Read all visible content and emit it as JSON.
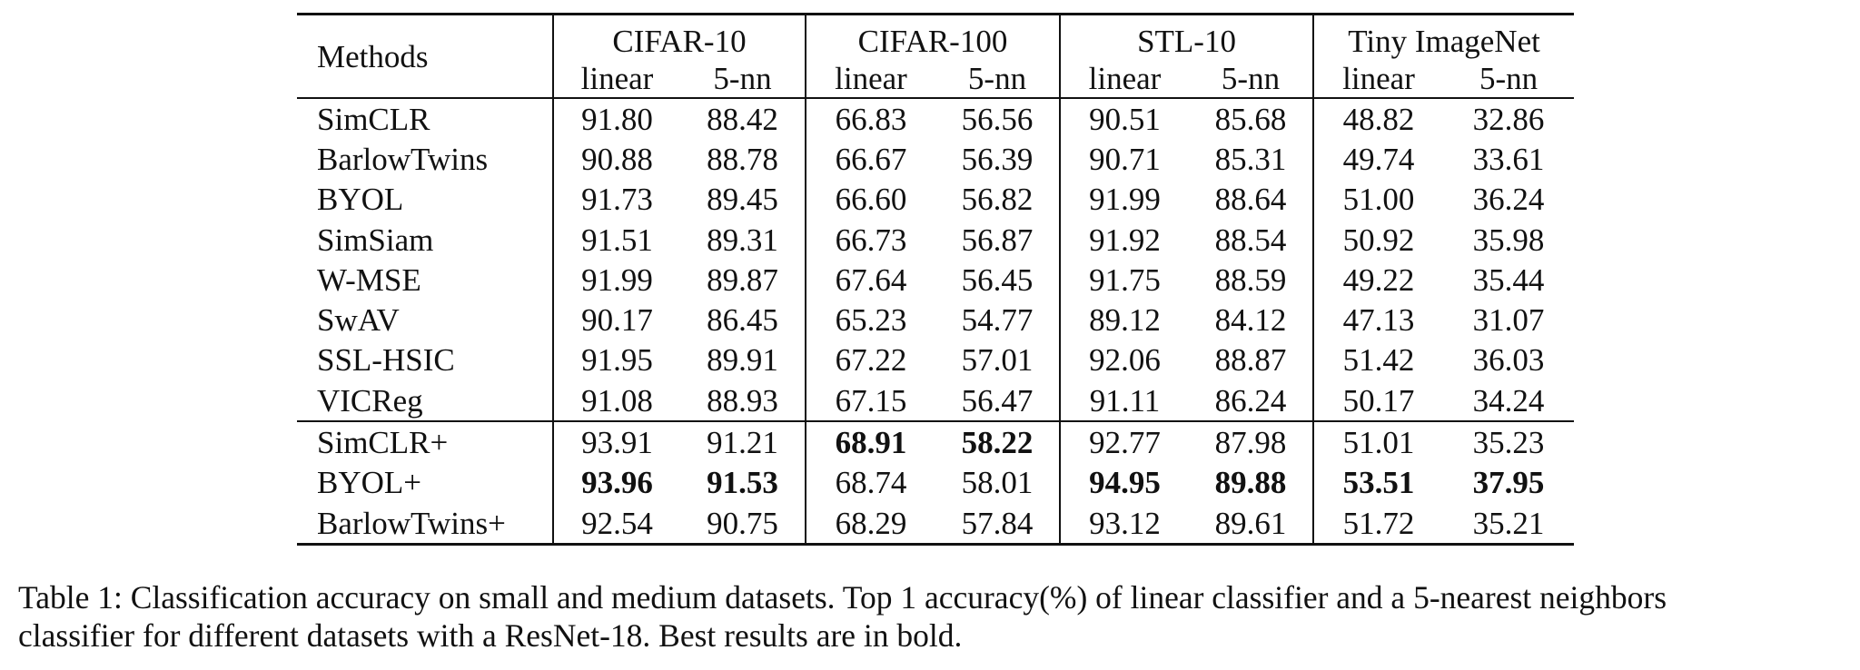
{
  "table": {
    "methods_header": "Methods",
    "datasets": [
      "CIFAR-10",
      "CIFAR-100",
      "STL-10",
      "Tiny ImageNet"
    ],
    "sub_headers": [
      "linear",
      "5-nn"
    ],
    "baseline_rows": [
      {
        "method": "SimCLR",
        "values": [
          "91.80",
          "88.42",
          "66.83",
          "56.56",
          "90.51",
          "85.68",
          "48.82",
          "32.86"
        ],
        "bold": [
          false,
          false,
          false,
          false,
          false,
          false,
          false,
          false
        ]
      },
      {
        "method": "BarlowTwins",
        "values": [
          "90.88",
          "88.78",
          "66.67",
          "56.39",
          "90.71",
          "85.31",
          "49.74",
          "33.61"
        ],
        "bold": [
          false,
          false,
          false,
          false,
          false,
          false,
          false,
          false
        ]
      },
      {
        "method": "BYOL",
        "values": [
          "91.73",
          "89.45",
          "66.60",
          "56.82",
          "91.99",
          "88.64",
          "51.00",
          "36.24"
        ],
        "bold": [
          false,
          false,
          false,
          false,
          false,
          false,
          false,
          false
        ]
      },
      {
        "method": "SimSiam",
        "values": [
          "91.51",
          "89.31",
          "66.73",
          "56.87",
          "91.92",
          "88.54",
          "50.92",
          "35.98"
        ],
        "bold": [
          false,
          false,
          false,
          false,
          false,
          false,
          false,
          false
        ]
      },
      {
        "method": "W-MSE",
        "values": [
          "91.99",
          "89.87",
          "67.64",
          "56.45",
          "91.75",
          "88.59",
          "49.22",
          "35.44"
        ],
        "bold": [
          false,
          false,
          false,
          false,
          false,
          false,
          false,
          false
        ]
      },
      {
        "method": "SwAV",
        "values": [
          "90.17",
          "86.45",
          "65.23",
          "54.77",
          "89.12",
          "84.12",
          "47.13",
          "31.07"
        ],
        "bold": [
          false,
          false,
          false,
          false,
          false,
          false,
          false,
          false
        ]
      },
      {
        "method": "SSL-HSIC",
        "values": [
          "91.95",
          "89.91",
          "67.22",
          "57.01",
          "92.06",
          "88.87",
          "51.42",
          "36.03"
        ],
        "bold": [
          false,
          false,
          false,
          false,
          false,
          false,
          false,
          false
        ]
      },
      {
        "method": "VICReg",
        "values": [
          "91.08",
          "88.93",
          "67.15",
          "56.47",
          "91.11",
          "86.24",
          "50.17",
          "34.24"
        ],
        "bold": [
          false,
          false,
          false,
          false,
          false,
          false,
          false,
          false
        ]
      }
    ],
    "proposed_rows": [
      {
        "method": "SimCLR+",
        "values": [
          "93.91",
          "91.21",
          "68.91",
          "58.22",
          "92.77",
          "87.98",
          "51.01",
          "35.23"
        ],
        "bold": [
          false,
          false,
          true,
          true,
          false,
          false,
          false,
          false
        ]
      },
      {
        "method": "BYOL+",
        "values": [
          "93.96",
          "91.53",
          "68.74",
          "58.01",
          "94.95",
          "89.88",
          "53.51",
          "37.95"
        ],
        "bold": [
          true,
          true,
          false,
          false,
          true,
          true,
          true,
          true
        ]
      },
      {
        "method": "BarlowTwins+",
        "values": [
          "92.54",
          "90.75",
          "68.29",
          "57.84",
          "93.12",
          "89.61",
          "51.72",
          "35.21"
        ],
        "bold": [
          false,
          false,
          false,
          false,
          false,
          false,
          false,
          false
        ]
      }
    ]
  },
  "caption": {
    "line1": "Table 1: Classification accuracy on small and medium datasets. Top 1 accuracy(%) of linear classifier and a 5-nearest neighbors",
    "line2": "classifier for different datasets with a ResNet-18. Best results are in bold."
  }
}
